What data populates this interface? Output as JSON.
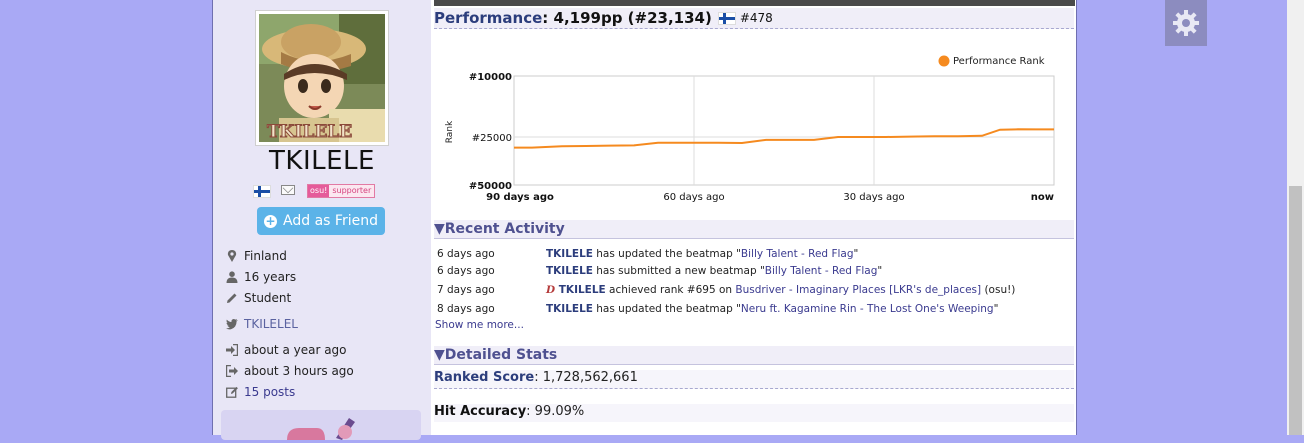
{
  "profile": {
    "username": "TKILELE",
    "avatar_caption": "TKILELE",
    "supporter": {
      "osu": "osu!",
      "label": "supporter"
    },
    "add_friend_label": "Add as Friend",
    "location": "Finland",
    "age": "16 years",
    "occupation": "Student",
    "twitter": "TKILELEL",
    "joined": "about a year ago",
    "last_active": "about 3 hours ago",
    "posts": "15 posts"
  },
  "performance": {
    "label": "Performance",
    "value": ": 4,199pp (#23,134)",
    "country_rank": "#478"
  },
  "chart_data": {
    "type": "line",
    "ylabel": "Rank",
    "yticks": [
      "#10000",
      "#25000",
      "#50000"
    ],
    "xticks": [
      "90 days ago",
      "60 days ago",
      "30 days ago",
      "now"
    ],
    "series": [
      {
        "name": "Performance Rank",
        "color": "#f58a1f",
        "x": [
          90,
          87,
          82,
          78,
          74,
          70,
          66,
          62,
          60,
          56,
          52,
          48,
          44,
          40,
          36,
          32,
          28,
          24,
          20,
          16,
          12,
          9,
          6,
          3,
          0
        ],
        "y": [
          30500,
          30500,
          29800,
          29700,
          29500,
          29400,
          28000,
          28000,
          28000,
          28000,
          28100,
          26500,
          26500,
          26500,
          25000,
          25000,
          25000,
          24900,
          24800,
          24800,
          24700,
          23200,
          23100,
          23134,
          23134
        ]
      }
    ]
  },
  "recent_activity": {
    "heading": "▼Recent Activity",
    "items": [
      {
        "date": "6 days ago",
        "user": "TKILELE",
        "text": " has updated the beatmap \"",
        "link": "Billy Talent - Red Flag",
        "tail": "\""
      },
      {
        "date": "6 days ago",
        "user": "TKILELE",
        "text": " has submitted a new beatmap \"",
        "link": "Billy Talent - Red Flag",
        "tail": "\""
      },
      {
        "date": "7 days ago",
        "user": "TKILELE",
        "text": " achieved rank #695 on ",
        "link": "Busdriver - Imaginary Places [LKR's de_places]",
        "tail": " (osu!)"
      },
      {
        "date": "8 days ago",
        "user": "TKILELE",
        "text": " has updated the beatmap \"",
        "link": "Neru ft. Kagamine Rin - The Lost One's Weeping",
        "tail": "\""
      }
    ],
    "show_more": "Show me more..."
  },
  "detailed_stats": {
    "heading": "▼Detailed Stats",
    "ranked_score_label": "Ranked Score",
    "ranked_score_value": ": 1,728,562,661",
    "hit_accuracy_label": "Hit Accuracy",
    "hit_accuracy_value": ": 99.09%"
  },
  "colors": {
    "accent": "#2c3d7c",
    "chart_line": "#f58a1f",
    "friend_button": "#5bb3e8"
  }
}
